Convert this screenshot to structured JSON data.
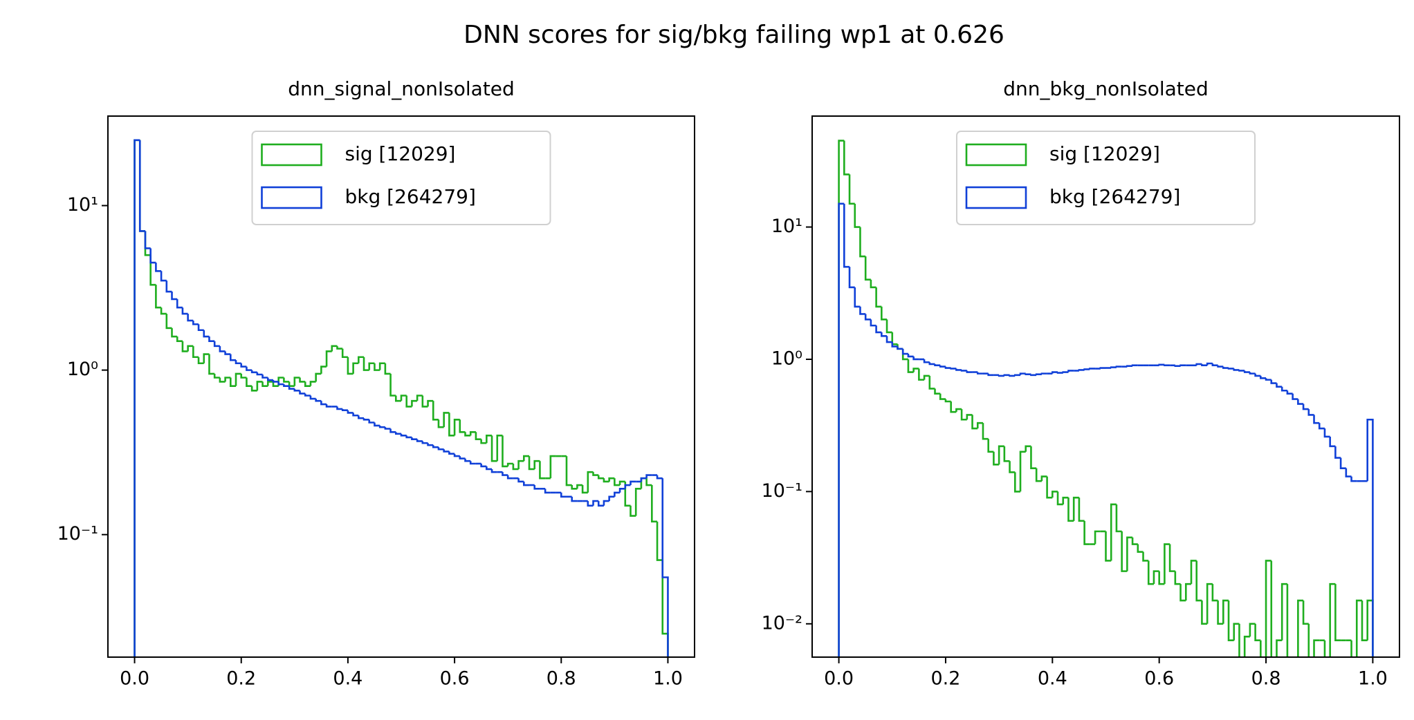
{
  "title": "DNN scores for sig/bkg failing wp1 at 0.626",
  "chart_data": [
    {
      "type": "histogram",
      "title": "dnn_signal_nonIsolated",
      "log_y": true,
      "legend": "upper center",
      "bins": [
        0,
        0.01,
        0.02,
        0.03,
        0.04,
        0.05,
        0.06,
        0.07,
        0.08,
        0.09,
        0.1,
        0.11,
        0.12,
        0.13,
        0.14,
        0.15,
        0.16,
        0.17,
        0.18,
        0.19,
        0.2,
        0.21,
        0.22,
        0.23,
        0.24,
        0.25,
        0.26,
        0.27,
        0.28,
        0.29,
        0.3,
        0.31,
        0.32,
        0.33,
        0.34,
        0.35,
        0.36,
        0.37,
        0.38,
        0.39,
        0.4,
        0.41,
        0.42,
        0.43,
        0.44,
        0.45,
        0.46,
        0.47,
        0.48,
        0.49,
        0.5,
        0.51,
        0.52,
        0.53,
        0.54,
        0.55,
        0.56,
        0.57,
        0.58,
        0.59,
        0.6,
        0.61,
        0.62,
        0.63,
        0.64,
        0.65,
        0.66,
        0.67,
        0.68,
        0.69,
        0.7,
        0.71,
        0.72,
        0.73,
        0.74,
        0.75,
        0.76,
        0.77,
        0.78,
        0.79,
        0.8,
        0.81,
        0.82,
        0.83,
        0.84,
        0.85,
        0.86,
        0.87,
        0.88,
        0.89,
        0.9,
        0.91,
        0.92,
        0.93,
        0.94,
        0.95,
        0.96,
        0.97,
        0.98,
        0.99,
        1
      ],
      "series": [
        {
          "name": "sig [12029]",
          "color": "#1fae1f",
          "values": [
            25,
            7,
            5,
            3.3,
            2.4,
            2.2,
            1.8,
            1.6,
            1.5,
            1.3,
            1.4,
            1.2,
            1.1,
            1.25,
            0.95,
            0.9,
            0.85,
            0.9,
            0.8,
            0.95,
            0.9,
            0.8,
            0.75,
            0.85,
            0.8,
            0.85,
            0.8,
            0.9,
            0.85,
            0.8,
            0.9,
            0.85,
            0.8,
            0.85,
            0.95,
            1.05,
            1.3,
            1.4,
            1.35,
            1.2,
            0.95,
            1.1,
            1.2,
            1.0,
            1.1,
            1.0,
            1.1,
            0.95,
            0.7,
            0.65,
            0.7,
            0.6,
            0.65,
            0.7,
            0.6,
            0.65,
            0.5,
            0.45,
            0.55,
            0.4,
            0.5,
            0.42,
            0.4,
            0.42,
            0.38,
            0.36,
            0.4,
            0.28,
            0.4,
            0.26,
            0.27,
            0.25,
            0.28,
            0.3,
            0.25,
            0.28,
            0.22,
            0.22,
            0.3,
            0.3,
            0.3,
            0.2,
            0.19,
            0.2,
            0.18,
            0.24,
            0.23,
            0.22,
            0.21,
            0.22,
            0.2,
            0.21,
            0.15,
            0.13,
            0.19,
            0.22,
            0.2,
            0.12,
            0.07,
            0.025
          ]
        },
        {
          "name": "bkg [264279]",
          "color": "#1040d8",
          "values": [
            25,
            7,
            5.5,
            4.5,
            4.0,
            3.5,
            3.0,
            2.7,
            2.4,
            2.2,
            2.0,
            1.9,
            1.75,
            1.6,
            1.5,
            1.4,
            1.3,
            1.25,
            1.15,
            1.1,
            1.05,
            1.0,
            0.97,
            0.94,
            0.9,
            0.87,
            0.85,
            0.82,
            0.8,
            0.77,
            0.75,
            0.72,
            0.7,
            0.67,
            0.65,
            0.62,
            0.6,
            0.6,
            0.58,
            0.57,
            0.55,
            0.53,
            0.51,
            0.5,
            0.48,
            0.46,
            0.45,
            0.44,
            0.42,
            0.41,
            0.4,
            0.39,
            0.38,
            0.37,
            0.36,
            0.35,
            0.34,
            0.33,
            0.32,
            0.31,
            0.3,
            0.29,
            0.28,
            0.27,
            0.27,
            0.26,
            0.25,
            0.24,
            0.24,
            0.23,
            0.22,
            0.22,
            0.21,
            0.2,
            0.2,
            0.19,
            0.19,
            0.18,
            0.18,
            0.18,
            0.17,
            0.17,
            0.16,
            0.16,
            0.16,
            0.15,
            0.16,
            0.15,
            0.16,
            0.17,
            0.18,
            0.19,
            0.2,
            0.21,
            0.21,
            0.22,
            0.23,
            0.23,
            0.22,
            0.055
          ]
        }
      ],
      "xlim": [
        -0.05,
        1.05
      ],
      "xticks": [
        {
          "value": 0,
          "label": "0.0"
        },
        0.2,
        0.4,
        0.6,
        0.8,
        {
          "value": 1,
          "label": "1.0"
        }
      ],
      "ylim": [
        0.018,
        35
      ],
      "yticks": [
        {
          "value": 0.1,
          "label": "10⁻¹"
        },
        {
          "value": 1,
          "label": "10⁰"
        },
        {
          "value": 10,
          "label": "10¹"
        }
      ]
    },
    {
      "type": "histogram",
      "title": "dnn_bkg_nonIsolated",
      "log_y": true,
      "legend": "upper center",
      "bins": [
        0,
        0.01,
        0.02,
        0.03,
        0.04,
        0.05,
        0.06,
        0.07,
        0.08,
        0.09,
        0.1,
        0.11,
        0.12,
        0.13,
        0.14,
        0.15,
        0.16,
        0.17,
        0.18,
        0.19,
        0.2,
        0.21,
        0.22,
        0.23,
        0.24,
        0.25,
        0.26,
        0.27,
        0.28,
        0.29,
        0.3,
        0.31,
        0.32,
        0.33,
        0.34,
        0.35,
        0.36,
        0.37,
        0.38,
        0.39,
        0.4,
        0.41,
        0.42,
        0.43,
        0.44,
        0.45,
        0.46,
        0.47,
        0.48,
        0.49,
        0.5,
        0.51,
        0.52,
        0.53,
        0.54,
        0.55,
        0.56,
        0.57,
        0.58,
        0.59,
        0.6,
        0.61,
        0.62,
        0.63,
        0.64,
        0.65,
        0.66,
        0.67,
        0.68,
        0.69,
        0.7,
        0.71,
        0.72,
        0.73,
        0.74,
        0.75,
        0.76,
        0.77,
        0.78,
        0.79,
        0.8,
        0.81,
        0.82,
        0.83,
        0.84,
        0.85,
        0.86,
        0.87,
        0.88,
        0.89,
        0.9,
        0.91,
        0.92,
        0.93,
        0.94,
        0.95,
        0.96,
        0.97,
        0.98,
        0.99,
        1
      ],
      "series": [
        {
          "name": "sig [12029]",
          "color": "#1fae1f",
          "values": [
            45,
            25,
            15,
            10,
            6,
            4,
            3.5,
            2.5,
            2,
            1.6,
            1.3,
            1.2,
            1.0,
            0.8,
            0.85,
            0.7,
            0.75,
            0.6,
            0.55,
            0.5,
            0.48,
            0.4,
            0.42,
            0.35,
            0.38,
            0.3,
            0.33,
            0.25,
            0.2,
            0.16,
            0.22,
            0.17,
            0.14,
            0.1,
            0.2,
            0.22,
            0.15,
            0.12,
            0.13,
            0.09,
            0.1,
            0.08,
            0.09,
            0.06,
            0.09,
            0.06,
            0.04,
            0.04,
            0.05,
            0.05,
            0.03,
            0.08,
            0.05,
            0.025,
            0.045,
            0.04,
            0.035,
            0.03,
            0.02,
            0.025,
            0.02,
            0.04,
            0.025,
            0.02,
            0.015,
            0.02,
            0.03,
            0.015,
            0.01,
            0.02,
            0.015,
            0.01,
            0.015,
            0.0075,
            0.01,
            0,
            0.008,
            0.01,
            0.0075,
            0,
            0.03,
            0,
            0.0075,
            0.02,
            0,
            0,
            0.015,
            0.01,
            0,
            0.0075,
            0.0075,
            0,
            0.02,
            0.0075,
            0.0075,
            0.0075,
            0,
            0.015,
            0.0075,
            0.015
          ]
        },
        {
          "name": "bkg [264279]",
          "color": "#1040d8",
          "values": [
            15,
            5,
            3.5,
            2.5,
            2.2,
            2.0,
            1.8,
            1.6,
            1.5,
            1.35,
            1.25,
            1.2,
            1.1,
            1.05,
            1.0,
            1.0,
            0.95,
            0.92,
            0.9,
            0.88,
            0.86,
            0.85,
            0.83,
            0.82,
            0.8,
            0.8,
            0.78,
            0.78,
            0.76,
            0.76,
            0.75,
            0.76,
            0.75,
            0.76,
            0.78,
            0.77,
            0.76,
            0.77,
            0.78,
            0.78,
            0.8,
            0.79,
            0.8,
            0.82,
            0.82,
            0.83,
            0.84,
            0.85,
            0.85,
            0.86,
            0.86,
            0.87,
            0.88,
            0.88,
            0.89,
            0.9,
            0.9,
            0.9,
            0.9,
            0.9,
            0.91,
            0.9,
            0.9,
            0.89,
            0.9,
            0.9,
            0.9,
            0.92,
            0.9,
            0.93,
            0.9,
            0.88,
            0.86,
            0.85,
            0.83,
            0.82,
            0.8,
            0.78,
            0.75,
            0.72,
            0.7,
            0.66,
            0.62,
            0.58,
            0.55,
            0.5,
            0.46,
            0.42,
            0.38,
            0.33,
            0.3,
            0.26,
            0.22,
            0.18,
            0.15,
            0.13,
            0.12,
            0.12,
            0.12,
            0.35
          ]
        }
      ],
      "xlim": [
        -0.05,
        1.05
      ],
      "xticks": [
        {
          "value": 0,
          "label": "0.0"
        },
        0.2,
        0.4,
        0.6,
        0.8,
        {
          "value": 1,
          "label": "1.0"
        }
      ],
      "ylim": [
        0.0056,
        69
      ],
      "yticks": [
        {
          "value": 0.01,
          "label": "10⁻²"
        },
        {
          "value": 0.1,
          "label": "10⁻¹"
        },
        {
          "value": 1,
          "label": "10⁰"
        },
        {
          "value": 10,
          "label": "10¹"
        }
      ]
    }
  ]
}
